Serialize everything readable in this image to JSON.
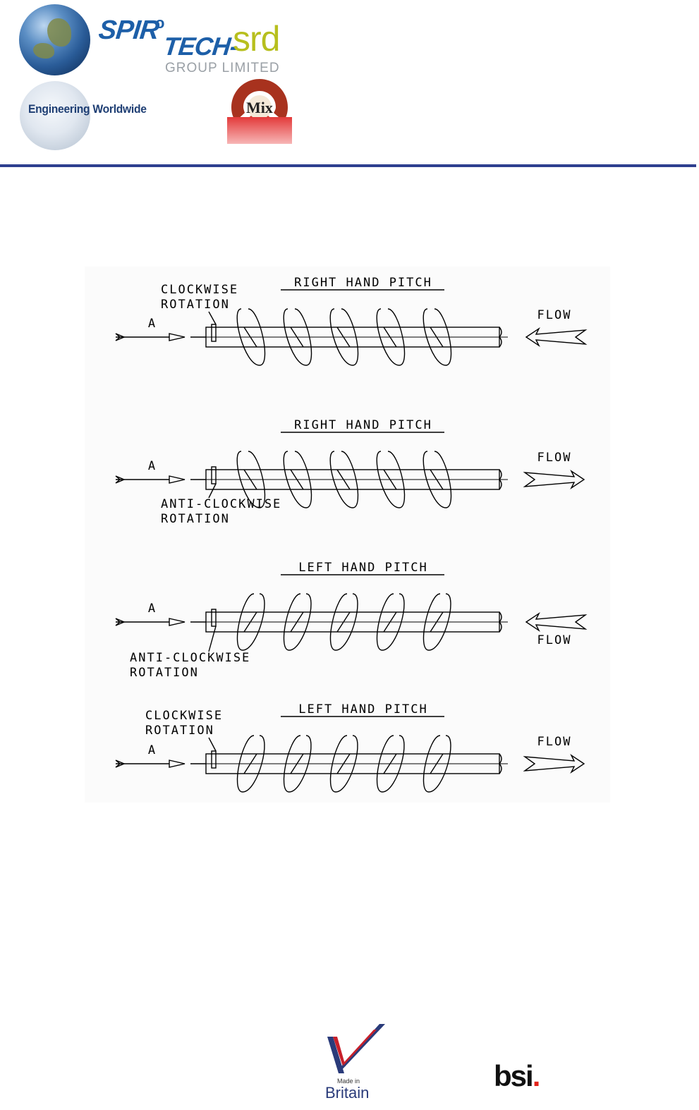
{
  "header": {
    "brand_spiro": "SPIR",
    "brand_o": "o",
    "brand_tech": "TECH-",
    "brand_srd": "srd",
    "brand_group": "GROUP LIMITED",
    "tagline": "Engineering Worldwide",
    "mix_logo_text": "Mix",
    "colors": {
      "brand_blue": "#1d5fa8",
      "srd_green": "#b7bf1e",
      "rule_blue": "#2e3f8f",
      "mix_red": "#e33a3a"
    }
  },
  "diagram": {
    "panels": [
      {
        "pitch_label": "RIGHT HAND PITCH",
        "rotation_label_line1": "CLOCKWISE",
        "rotation_label_line2": "ROTATION",
        "view_label": "A",
        "flow_label": "FLOW",
        "flow_direction": "left"
      },
      {
        "pitch_label": "RIGHT HAND PITCH",
        "rotation_label_line1": "ANTI-CLOCKWISE",
        "rotation_label_line2": "ROTATION",
        "view_label": "A",
        "flow_label": "FLOW",
        "flow_direction": "right"
      },
      {
        "pitch_label": "LEFT HAND PITCH",
        "rotation_label_line1": "ANTI-CLOCKWISE",
        "rotation_label_line2": "ROTATION",
        "view_label": "A",
        "flow_label": "FLOW",
        "flow_direction": "left"
      },
      {
        "pitch_label": "LEFT HAND PITCH",
        "rotation_label_line1": "CLOCKWISE",
        "rotation_label_line2": "ROTATION",
        "view_label": "A",
        "flow_label": "FLOW",
        "flow_direction": "right"
      }
    ]
  },
  "footer": {
    "made_in": "Made in",
    "britain": "Britain",
    "bsi": "bsi",
    "bsi_dot": "."
  }
}
